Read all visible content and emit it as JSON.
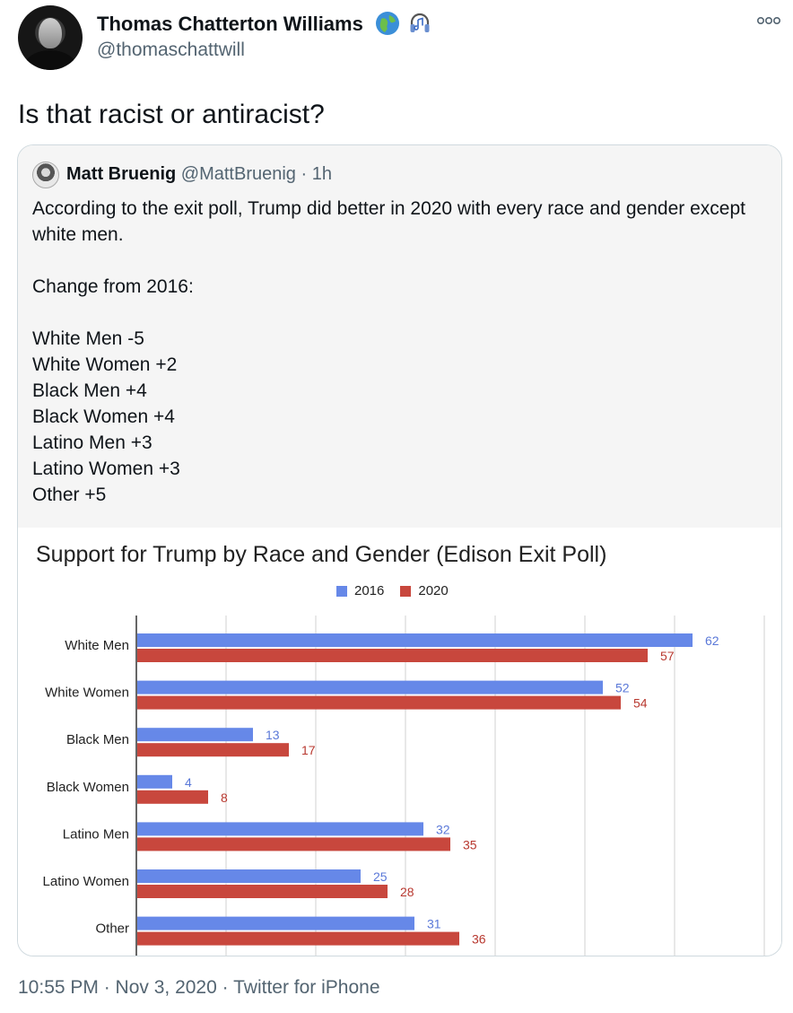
{
  "tweet": {
    "author_name": "Thomas Chatterton Williams",
    "handle": "@thomaschattwill",
    "emoji_1": "globe-icon",
    "emoji_2": "headphones-icon",
    "text": "Is that racist or antiracist?",
    "timestamp": "10:55 PM · Nov 3, 2020",
    "separator": "·",
    "source": "Twitter for iPhone"
  },
  "quote": {
    "name": "Matt Bruenig",
    "handle": "@MattBruenig",
    "dot": "·",
    "time": "1h",
    "text": "According to the exit poll, Trump did better in 2020 with every race and gender except white men.\n\nChange from 2016:\n\nWhite Men -5\nWhite Women +2\nBlack Men +4\nBlack Women +4\nLatino Men +3\nLatino Women +3\nOther +5"
  },
  "colors": {
    "series_2016": "#6688e8",
    "series_2020": "#c8473d",
    "label_2016": "#5a78d8",
    "label_2020": "#b8382f"
  },
  "chart_data": {
    "type": "bar",
    "orientation": "horizontal",
    "title": "Support for Trump by Race and Gender (Edison Exit Poll)",
    "categories": [
      "White Men",
      "White Women",
      "Black Men",
      "Black Women",
      "Latino Men",
      "Latino Women",
      "Other"
    ],
    "series": [
      {
        "name": "2016",
        "values": [
          62,
          52,
          13,
          4,
          32,
          25,
          31
        ]
      },
      {
        "name": "2020",
        "values": [
          57,
          54,
          17,
          8,
          35,
          28,
          36
        ]
      }
    ],
    "xlim": [
      0,
      70
    ],
    "grid": true,
    "legend": "top-center",
    "data_labels": true
  }
}
